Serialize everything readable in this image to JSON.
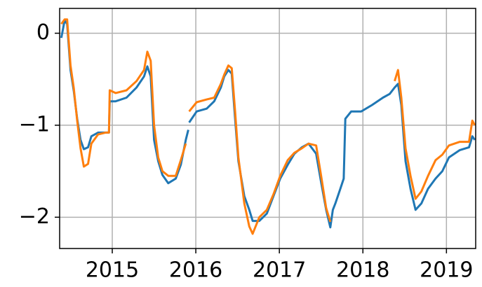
{
  "chart_data": {
    "type": "line",
    "x": [
      2014.39,
      2014.43,
      2014.46,
      2014.5,
      2014.54,
      2014.58,
      2014.62,
      2014.66,
      2014.71,
      2014.75,
      2014.83,
      2014.92,
      2014.96,
      2014.97,
      2015.04,
      2015.17,
      2015.29,
      2015.38,
      2015.42,
      2015.46,
      2015.5,
      2015.55,
      2015.6,
      2015.67,
      2015.76,
      2015.82,
      2015.88,
      2015.91,
      2015.915,
      2015.92,
      2016.01,
      2016.13,
      2016.22,
      2016.3,
      2016.34,
      2016.39,
      2016.43,
      2016.47,
      2016.51,
      2016.58,
      2016.64,
      2016.68,
      2016.76,
      2016.85,
      2016.93,
      2017.01,
      2017.1,
      2017.18,
      2017.27,
      2017.35,
      2017.44,
      2017.5,
      2017.56,
      2017.61,
      2017.64,
      2017.67,
      2017.73,
      2017.77,
      2017.79,
      2017.86,
      2017.98,
      2018.11,
      2018.24,
      2018.32,
      2018.38,
      2018.42,
      2018.46,
      2018.51,
      2018.57,
      2018.63,
      2018.7,
      2018.78,
      2018.87,
      2018.95,
      2019.03,
      2019.16,
      2019.27,
      2019.31,
      2019.34
    ],
    "series": [
      {
        "color": "#1f77b4",
        "values": [
          -0.05,
          0.14,
          0.1,
          -0.4,
          -0.63,
          -0.93,
          -1.16,
          -1.26,
          -1.24,
          -1.12,
          -1.08,
          -1.08,
          -1.08,
          -0.74,
          -0.74,
          -0.7,
          -0.59,
          -0.47,
          -0.36,
          -0.47,
          -1.16,
          -1.39,
          -1.54,
          -1.63,
          -1.58,
          -1.43,
          -1.16,
          -1.05,
          null,
          -0.97,
          -0.85,
          -0.82,
          -0.74,
          -0.59,
          -0.47,
          -0.4,
          -0.44,
          -0.93,
          -1.39,
          -1.77,
          -1.92,
          -2.04,
          -2.04,
          -1.96,
          -1.77,
          -1.58,
          -1.43,
          -1.31,
          -1.24,
          -1.2,
          -1.31,
          -1.62,
          -1.92,
          -2.11,
          -1.92,
          -1.85,
          -1.69,
          -1.58,
          -0.93,
          -0.85,
          -0.85,
          -0.78,
          -0.7,
          -0.66,
          -0.59,
          -0.55,
          -0.78,
          -1.39,
          -1.69,
          -1.92,
          -1.85,
          -1.69,
          -1.58,
          -1.5,
          -1.35,
          -1.27,
          -1.24,
          -1.12,
          -1.16
        ]
      },
      {
        "color": "#ff7f0e",
        "values": [
          0.1,
          0.15,
          0.15,
          -0.35,
          -0.6,
          -0.95,
          -1.25,
          -1.45,
          -1.42,
          -1.2,
          -1.1,
          -1.08,
          -1.08,
          -0.62,
          -0.65,
          -0.62,
          -0.52,
          -0.4,
          -0.2,
          -0.3,
          -1.0,
          -1.35,
          -1.5,
          -1.55,
          -1.55,
          -1.38,
          -1.2,
          null,
          null,
          -0.85,
          -0.75,
          -0.72,
          -0.7,
          -0.55,
          -0.45,
          -0.35,
          -0.38,
          -0.85,
          -1.35,
          -1.85,
          -2.1,
          -2.18,
          -2.0,
          -1.92,
          -1.75,
          -1.55,
          -1.38,
          -1.3,
          -1.25,
          -1.2,
          -1.22,
          -1.55,
          -1.9,
          -2.05,
          null,
          null,
          null,
          null,
          null,
          null,
          null,
          null,
          null,
          null,
          -0.52,
          -0.4,
          -0.7,
          -1.25,
          -1.55,
          -1.8,
          -1.72,
          -1.55,
          -1.38,
          -1.32,
          -1.22,
          -1.18,
          -1.18,
          -0.95,
          -1.0
        ]
      }
    ],
    "xlim": [
      2014.37,
      2019.35
    ],
    "xticks": [
      2015,
      2016,
      2017,
      2018,
      2019
    ],
    "ylim": [
      -2.34,
      0.27
    ],
    "yticks": [
      {
        "value": 0,
        "label": "0"
      },
      {
        "value": -1,
        "label": "−1"
      },
      {
        "value": -2,
        "label": "−2"
      }
    ],
    "grid": true
  }
}
